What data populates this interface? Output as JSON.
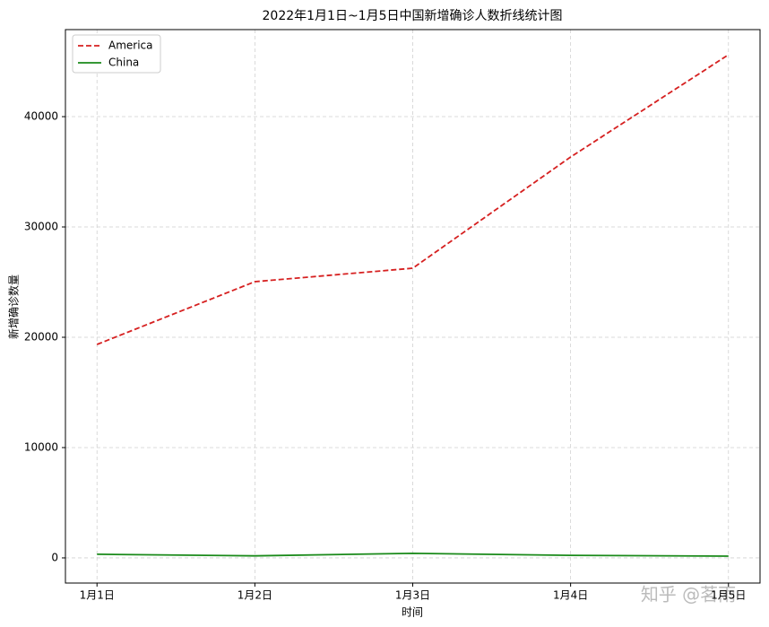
{
  "chart_data": {
    "type": "line",
    "title": "2022年1月1日~1月5日中国新增确诊人数折线统计图",
    "x_label": "时间",
    "y_label": "新增确诊数量",
    "categories": [
      "1月1日",
      "1月2日",
      "1月3日",
      "1月4日",
      "1月5日"
    ],
    "series": [
      {
        "name": "America",
        "color": "#d62020",
        "dash": true,
        "values": [
          19350,
          25040,
          26260,
          36340,
          45610
        ]
      },
      {
        "name": "China",
        "color": "#1a8a1a",
        "dash": false,
        "values": [
          330,
          185,
          412,
          230,
          160
        ]
      }
    ],
    "ylim": [
      -2280,
      47890
    ],
    "yticks": [
      0,
      10000,
      20000,
      30000,
      40000
    ],
    "grid": true,
    "legend": "upper-left",
    "watermark": "知乎 @茗雨"
  }
}
